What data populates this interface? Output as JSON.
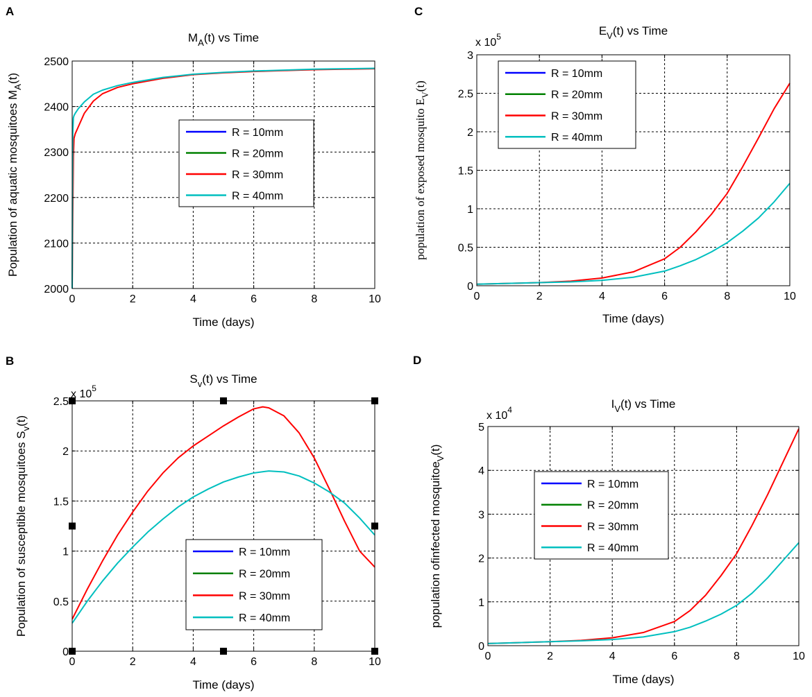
{
  "chart_data": [
    {
      "id": "A",
      "panel_letter": "A",
      "type": "line",
      "title": "M_A(t) vs Time",
      "title_parts": {
        "base": "M",
        "sub": "A",
        "rest": "(t) vs Time"
      },
      "xlabel": "Time (days)",
      "ylabel": "Population of aquatic mosquitoes M_A(t)",
      "ylabel_parts": {
        "base": "Population of aquatic mosquitoes M",
        "sub": "A",
        "rest": "(t)"
      },
      "xlim": [
        0,
        10
      ],
      "ylim": [
        2000,
        2500
      ],
      "xticks": [
        0,
        2,
        4,
        6,
        8,
        10
      ],
      "yticks": [
        2000,
        2100,
        2200,
        2300,
        2400,
        2500
      ],
      "ytick_labels": [
        "2000",
        "2100",
        "2200",
        "2300",
        "2400",
        "2500"
      ],
      "exponent_label": "",
      "grid": true,
      "legend_position": "center-right",
      "series": [
        {
          "name": "R = 10mm",
          "color": "#0000ff",
          "x": [],
          "y": []
        },
        {
          "name": "R = 20mm",
          "color": "#008000",
          "x": [],
          "y": []
        },
        {
          "name": "R = 30mm",
          "color": "#ff0000",
          "x": [
            0,
            0.02,
            0.04,
            0.06,
            0.1,
            0.2,
            0.4,
            0.7,
            1,
            1.5,
            2,
            3,
            4,
            5,
            6,
            7,
            8,
            9,
            10
          ],
          "y": [
            2000,
            2165,
            2290,
            2330,
            2340,
            2355,
            2385,
            2412,
            2428,
            2442,
            2450,
            2462,
            2470,
            2474,
            2477,
            2479,
            2481,
            2482,
            2483
          ]
        },
        {
          "name": "R = 40mm",
          "color": "#00bfbf",
          "x": [
            0,
            0.01,
            0.02,
            0.04,
            0.06,
            0.1,
            0.2,
            0.4,
            0.7,
            1,
            1.5,
            2,
            3,
            4,
            5,
            6,
            7,
            8,
            9,
            10
          ],
          "y": [
            2000,
            2200,
            2340,
            2375,
            2380,
            2385,
            2395,
            2410,
            2427,
            2436,
            2446,
            2453,
            2464,
            2471,
            2475,
            2478,
            2480,
            2482,
            2483,
            2484
          ]
        }
      ]
    },
    {
      "id": "B",
      "panel_letter": "B",
      "type": "line",
      "title": "S_v(t) vs Time",
      "title_parts": {
        "base": "S",
        "sub": "v",
        "rest": "(t) vs Time"
      },
      "xlabel": "Time (days)",
      "ylabel": "Population of susceptible mosquitoes S_v(t)",
      "ylabel_parts": {
        "base": "Population of susceptible mosquitoes S",
        "sub": "v",
        "rest": "(t)"
      },
      "xlim": [
        0,
        10
      ],
      "ylim": [
        0,
        2.5
      ],
      "xticks": [
        0,
        2,
        4,
        6,
        8,
        10
      ],
      "yticks": [
        0,
        0.5,
        1,
        1.5,
        2,
        2.5
      ],
      "ytick_labels": [
        "0",
        "0.5",
        "1",
        "1.5",
        "2",
        "2.5"
      ],
      "exponent_label": "x 10",
      "exponent_power": "5",
      "grid": true,
      "legend_position": "bottom-right",
      "series": [
        {
          "name": "R = 10mm",
          "color": "#0000ff",
          "x": [],
          "y": []
        },
        {
          "name": "R = 20mm",
          "color": "#008000",
          "x": [],
          "y": []
        },
        {
          "name": "R = 30mm",
          "color": "#ff0000",
          "x": [
            0,
            0.5,
            1,
            1.5,
            2,
            2.5,
            3,
            3.5,
            4,
            4.5,
            5,
            5.5,
            6,
            6.3,
            6.5,
            7,
            7.5,
            8,
            8.5,
            9,
            9.5,
            10
          ],
          "y": [
            0.32,
            0.62,
            0.9,
            1.16,
            1.39,
            1.6,
            1.78,
            1.93,
            2.05,
            2.15,
            2.25,
            2.34,
            2.42,
            2.44,
            2.43,
            2.35,
            2.18,
            1.93,
            1.62,
            1.3,
            1.0,
            0.84
          ]
        },
        {
          "name": "R = 40mm",
          "color": "#00bfbf",
          "x": [
            0,
            0.5,
            1,
            1.5,
            2,
            2.5,
            3,
            3.5,
            4,
            4.5,
            5,
            5.5,
            6,
            6.5,
            7,
            7.5,
            8,
            8.5,
            9,
            9.5,
            10
          ],
          "y": [
            0.28,
            0.5,
            0.7,
            0.88,
            1.04,
            1.19,
            1.32,
            1.44,
            1.54,
            1.62,
            1.69,
            1.74,
            1.78,
            1.8,
            1.79,
            1.75,
            1.68,
            1.59,
            1.48,
            1.33,
            1.16
          ]
        }
      ]
    },
    {
      "id": "C",
      "panel_letter": "C",
      "type": "line",
      "title": "E_V(t) vs Time",
      "title_parts": {
        "base": "E",
        "sub": "V",
        "rest": "(t) vs Time"
      },
      "xlabel": "Time (days)",
      "ylabel": "population of exposed mosquito E_V(t)",
      "ylabel_parts": {
        "base": "population of exposed mosquito E",
        "sub": "V",
        "rest": "(t)"
      },
      "xlim": [
        0,
        10
      ],
      "ylim": [
        0,
        3
      ],
      "xticks": [
        0,
        2,
        4,
        6,
        8,
        10
      ],
      "yticks": [
        0,
        0.5,
        1,
        1.5,
        2,
        2.5,
        3
      ],
      "ytick_labels": [
        "0",
        "0.5",
        "1",
        "1.5",
        "2",
        "2.5",
        "3"
      ],
      "exponent_label": "x 10",
      "exponent_power": "5",
      "grid": true,
      "legend_position": "top-left",
      "series": [
        {
          "name": "R = 10mm",
          "color": "#0000ff",
          "x": [],
          "y": []
        },
        {
          "name": "R = 20mm",
          "color": "#008000",
          "x": [],
          "y": []
        },
        {
          "name": "R = 30mm",
          "color": "#ff0000",
          "x": [
            0,
            1,
            2,
            3,
            4,
            5,
            6,
            6.5,
            7,
            7.5,
            8,
            8.5,
            9,
            9.5,
            10
          ],
          "y": [
            0.02,
            0.03,
            0.04,
            0.06,
            0.1,
            0.18,
            0.35,
            0.5,
            0.7,
            0.93,
            1.2,
            1.55,
            1.92,
            2.3,
            2.63
          ]
        },
        {
          "name": "R = 40mm",
          "color": "#00bfbf",
          "x": [
            0,
            1,
            2,
            3,
            4,
            5,
            6,
            6.5,
            7,
            7.5,
            8,
            8.5,
            9,
            9.5,
            10
          ],
          "y": [
            0.02,
            0.03,
            0.04,
            0.05,
            0.07,
            0.11,
            0.19,
            0.26,
            0.34,
            0.44,
            0.56,
            0.71,
            0.88,
            1.09,
            1.33
          ]
        }
      ]
    },
    {
      "id": "D",
      "panel_letter": "D",
      "type": "line",
      "title": "I_V(t) vs Time",
      "title_parts": {
        "base": "I",
        "sub": "V",
        "rest": "(t) vs Time"
      },
      "xlabel": "Time (days)",
      "ylabel": "population ofinfected mosquitoe_V(t)",
      "ylabel_parts": {
        "base": "population ofinfected mosquitoe",
        "sub": "V",
        "rest": "(t)"
      },
      "xlim": [
        0,
        10
      ],
      "ylim": [
        0,
        5
      ],
      "xticks": [
        0,
        2,
        4,
        6,
        8,
        10
      ],
      "yticks": [
        0,
        1,
        2,
        3,
        4,
        5
      ],
      "ytick_labels": [
        "0",
        "1",
        "2",
        "3",
        "4",
        "5"
      ],
      "exponent_label": "x 10",
      "exponent_power": "4",
      "grid": true,
      "legend_position": "center-left",
      "series": [
        {
          "name": "R = 10mm",
          "color": "#0000ff",
          "x": [],
          "y": []
        },
        {
          "name": "R = 20mm",
          "color": "#008000",
          "x": [],
          "y": []
        },
        {
          "name": "R = 30mm",
          "color": "#ff0000",
          "x": [
            0,
            1,
            2,
            3,
            4,
            5,
            6,
            6.5,
            7,
            7.5,
            8,
            8.5,
            9,
            9.5,
            10
          ],
          "y": [
            0.05,
            0.07,
            0.09,
            0.12,
            0.18,
            0.3,
            0.55,
            0.8,
            1.15,
            1.6,
            2.1,
            2.75,
            3.45,
            4.2,
            4.95
          ]
        },
        {
          "name": "R = 40mm",
          "color": "#00bfbf",
          "x": [
            0,
            1,
            2,
            3,
            4,
            5,
            6,
            6.5,
            7,
            7.5,
            8,
            8.5,
            9,
            9.5,
            10
          ],
          "y": [
            0.05,
            0.07,
            0.09,
            0.11,
            0.14,
            0.2,
            0.32,
            0.42,
            0.56,
            0.72,
            0.92,
            1.2,
            1.55,
            1.95,
            2.35
          ]
        }
      ]
    }
  ]
}
